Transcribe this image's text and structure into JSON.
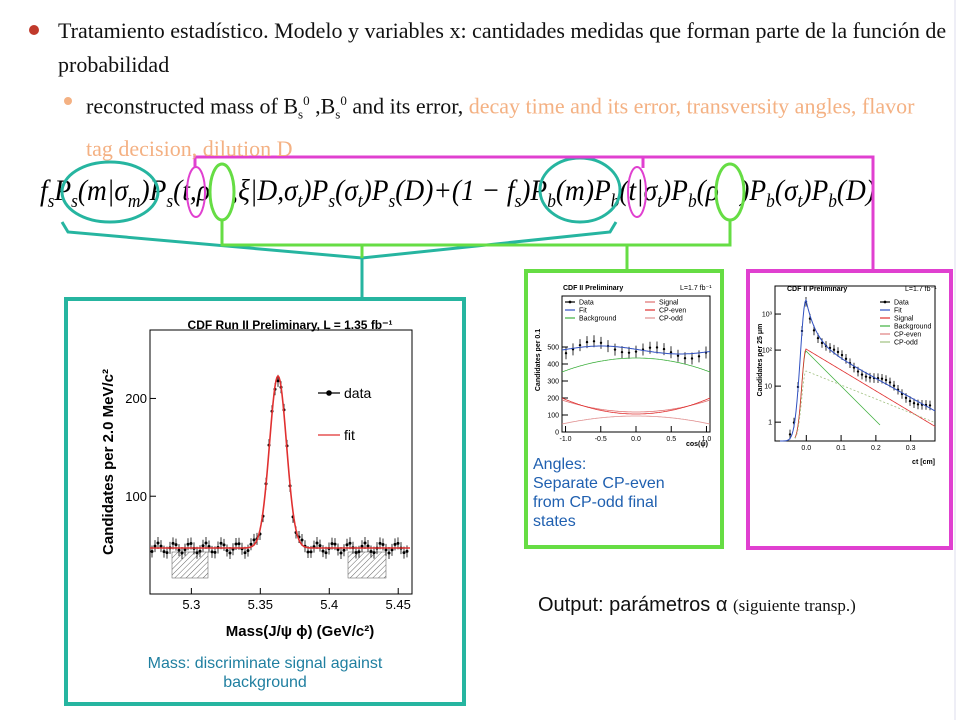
{
  "bullet1": "Tratamiento estadístico. Modelo y variables x: cantidades medidas que forman parte de la función de probabilidad",
  "bullet2": {
    "parts": [
      "reconstructed mass of B",
      "s",
      "0",
      " ,B",
      "s",
      "0",
      " and its error, "
    ],
    "highlight": "decay time and its error, transversity angles, flavor tag decision, dilution D"
  },
  "formula": [
    "f",
    "s",
    "P",
    "s",
    "(m|σ",
    "m",
    ")P",
    "s",
    "(t,ρ⃗,ξ|D,σ",
    "t",
    ")P",
    "s",
    "(σ",
    "t",
    ")P",
    "s",
    "(D)+(1 − f",
    "s",
    ")P",
    "b",
    "(m)P",
    "b",
    "(t|σ",
    "t",
    ")P",
    "b",
    "(ρ⃗)P",
    "b",
    "(σ",
    "t",
    ")P",
    "b",
    "(D)"
  ],
  "mass_plot": {
    "title": "CDF Run II Preliminary, L = 1.35 fb⁻¹",
    "ylabel": "Candidates per 2.0 MeV/c²",
    "xlabel": "Mass(J/ψ ϕ)  (GeV/c²)",
    "xlim": [
      5.27,
      5.46
    ],
    "ylim": [
      0,
      270
    ],
    "xticks": [
      5.3,
      5.35,
      5.4,
      5.45
    ],
    "yticks": [
      100,
      200
    ],
    "legend": [
      {
        "name": "data",
        "color": "#000000"
      },
      {
        "name": "fit",
        "color": "#e03030"
      }
    ]
  },
  "angles_plot": {
    "title": "CDF II Preliminary",
    "lumi": "L=1.7 fb⁻¹",
    "ylabel": "Candidates per 0.1",
    "xlabel": "cos(ψ)",
    "xlim": [
      -1.05,
      1.05
    ],
    "ylim": [
      0,
      800
    ],
    "xticks": [
      {
        "value": -1,
        "label": "-1.0"
      },
      {
        "value": -0.5,
        "label": "-0.5"
      },
      {
        "value": 0,
        "label": "0.0"
      },
      {
        "value": 0.5,
        "label": "0.5"
      },
      {
        "value": 1,
        "label": "1.0"
      }
    ],
    "yticks": [
      0,
      100,
      200,
      300,
      400,
      500
    ],
    "legend": [
      {
        "name": "Data",
        "color": "#000000"
      },
      {
        "name": "Signal",
        "color": "#e07070"
      },
      {
        "name": "Fit",
        "color": "#3050c0"
      },
      {
        "name": "CP-even",
        "color": "#e03030"
      },
      {
        "name": "Background",
        "color": "#40b040"
      },
      {
        "name": "CP-odd",
        "color": "#e09090"
      }
    ]
  },
  "ct_plot": {
    "title": "CDF II Preliminary",
    "lumi": "L=1.7 fb⁻¹",
    "ylabel": "Candidates per 25 μm",
    "xlabel": "ct [cm]",
    "log": true,
    "xlim": [
      -0.09,
      0.37
    ],
    "ylim": [
      0.3,
      6000
    ],
    "xticks": [
      {
        "value": 0,
        "label": "0.0"
      },
      0.1,
      0.2,
      0.3
    ],
    "yticks": [
      1,
      10,
      {
        "value": 100,
        "label": "10²"
      },
      {
        "value": 1000,
        "label": "10³"
      }
    ],
    "legend": [
      {
        "name": "Data",
        "color": "#000000"
      },
      {
        "name": "Fit",
        "color": "#3050c0"
      },
      {
        "name": "Signal",
        "color": "#e03030"
      },
      {
        "name": "Background",
        "color": "#40b040"
      },
      {
        "name": "CP-even",
        "color": "#e08080"
      },
      {
        "name": "CP-odd",
        "color": "#a0c080"
      }
    ]
  },
  "captions": {
    "mass": [
      "Mass: discriminate signal against",
      "background"
    ],
    "angles": [
      "Angles:",
      "Separate CP-even",
      "from  CP-odd final",
      "states"
    ],
    "output": "Output: parámetros α",
    "output_note": "(siguiente transp.)"
  }
}
